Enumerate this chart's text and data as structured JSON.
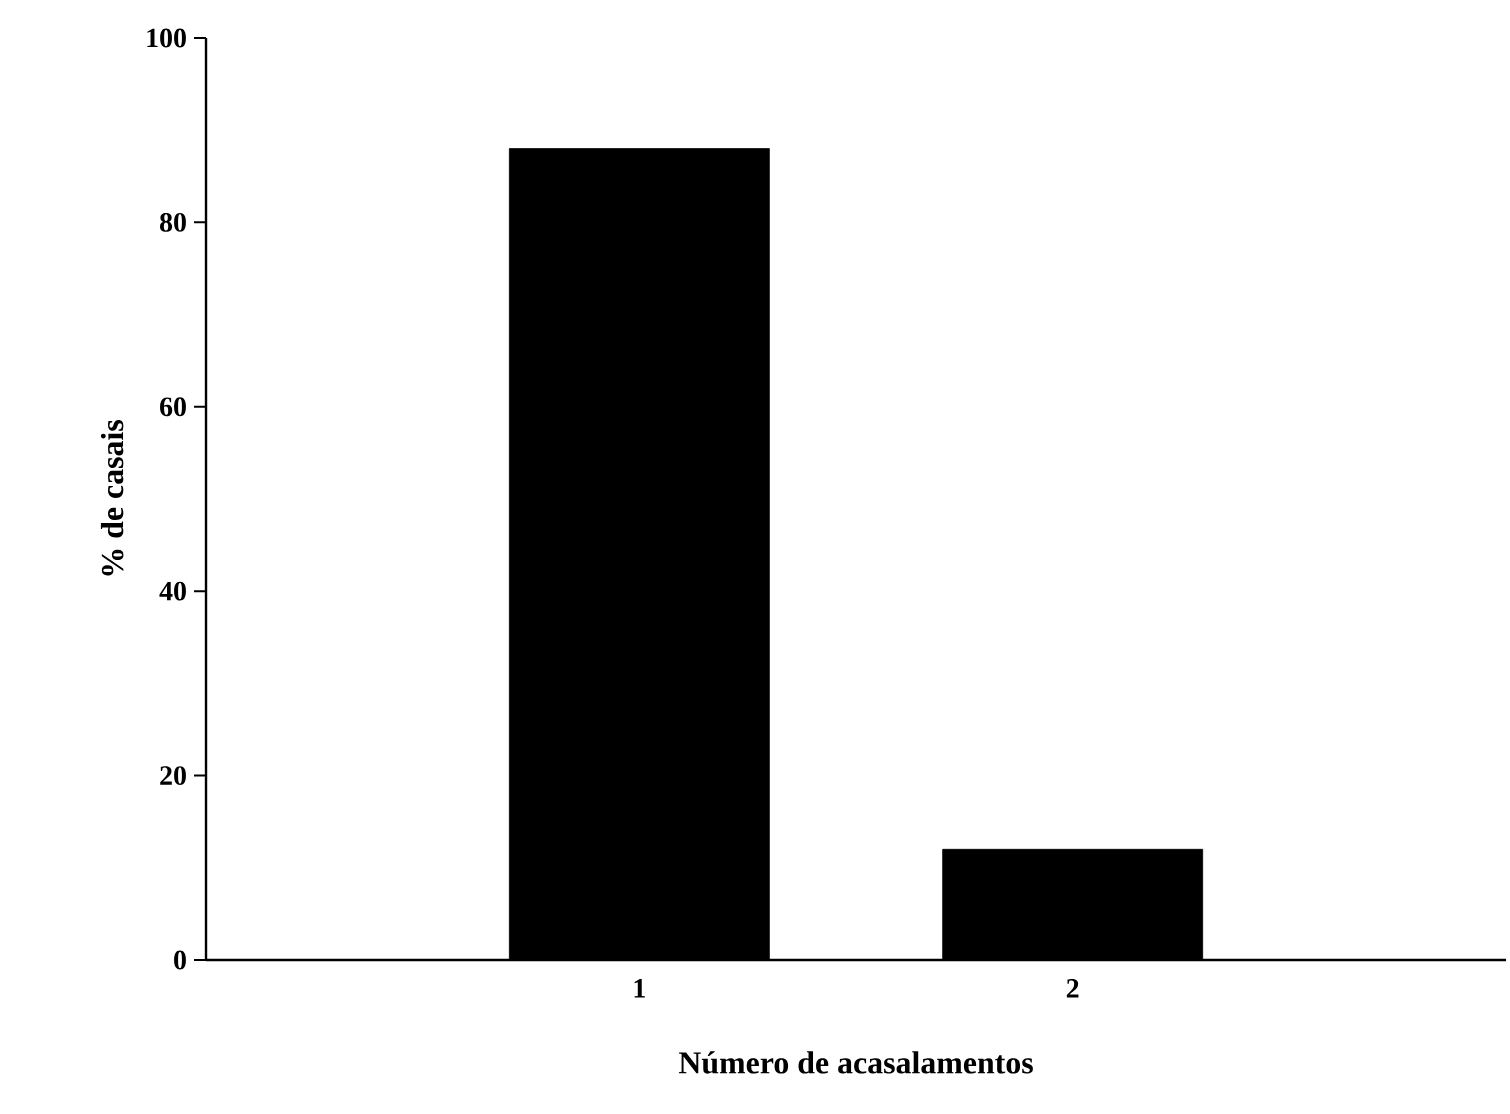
{
  "chart_data": {
    "type": "bar",
    "categories": [
      "1",
      "2"
    ],
    "values": [
      88,
      12
    ],
    "color": "#000000",
    "xlabel": "Número de acasalamentos",
    "ylabel": "% de casais",
    "ylim": [
      0,
      100
    ],
    "yticks": [
      0,
      20,
      40,
      60,
      80,
      100
    ]
  }
}
